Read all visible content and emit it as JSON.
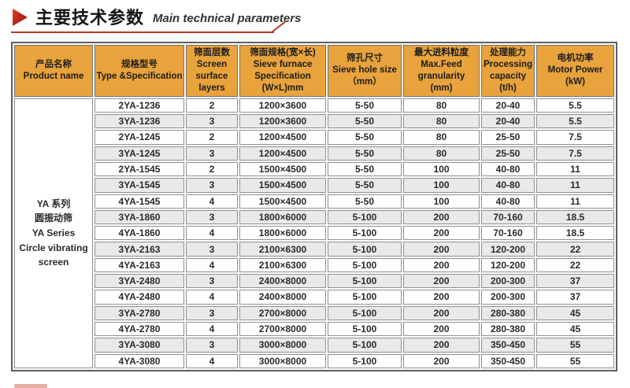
{
  "header": {
    "title_zh": "主要技术参数",
    "title_en": "Main technical parameters"
  },
  "table": {
    "column_headers": [
      "产品名称\nProduct name",
      "规格型号\nType &Specification",
      "筛面层数\nScreen\nsurface\nlayers",
      "筛面规格(宽×长)\nSieve furnace\nSpecification\n(W×L)mm",
      "筛孔尺寸\nSieve hole size\n（mm）",
      "最大进料粒度\nMax.Feed\ngranularity\n(mm)",
      "处理能力\nProcessing\ncapacity\n(t/h)",
      "电机功率\nMotor Power\n(kW)"
    ],
    "product_cell": "YA 系列\n圆振动筛\nYA Series\nCircle vibrating\nscreen",
    "rows": [
      [
        "2YA-1236",
        "2",
        "1200×3600",
        "5-50",
        "80",
        "20-40",
        "5.5"
      ],
      [
        "3YA-1236",
        "3",
        "1200×3600",
        "5-50",
        "80",
        "20-40",
        "5.5"
      ],
      [
        "2YA-1245",
        "2",
        "1200×4500",
        "5-50",
        "80",
        "25-50",
        "7.5"
      ],
      [
        "3YA-1245",
        "3",
        "1200×4500",
        "5-50",
        "80",
        "25-50",
        "7.5"
      ],
      [
        "2YA-1545",
        "2",
        "1500×4500",
        "5-50",
        "100",
        "40-80",
        "11"
      ],
      [
        "3YA-1545",
        "3",
        "1500×4500",
        "5-50",
        "100",
        "40-80",
        "11"
      ],
      [
        "4YA-1545",
        "4",
        "1500×4500",
        "5-50",
        "100",
        "40-80",
        "11"
      ],
      [
        "3YA-1860",
        "3",
        "1800×6000",
        "5-100",
        "200",
        "70-160",
        "18.5"
      ],
      [
        "4YA-1860",
        "4",
        "1800×6000",
        "5-100",
        "200",
        "70-160",
        "18.5"
      ],
      [
        "3YA-2163",
        "3",
        "2100×6300",
        "5-100",
        "200",
        "120-200",
        "22"
      ],
      [
        "4YA-2163",
        "4",
        "2100×6300",
        "5-100",
        "200",
        "120-200",
        "22"
      ],
      [
        "3YA-2480",
        "3",
        "2400×8000",
        "5-100",
        "200",
        "200-300",
        "37"
      ],
      [
        "4YA-2480",
        "4",
        "2400×8000",
        "5-100",
        "200",
        "200-300",
        "37"
      ],
      [
        "3YA-2780",
        "3",
        "2700×8000",
        "5-100",
        "200",
        "280-380",
        "45"
      ],
      [
        "4YA-2780",
        "4",
        "2700×8000",
        "5-100",
        "200",
        "280-380",
        "45"
      ],
      [
        "3YA-3080",
        "3",
        "3000×8000",
        "5-100",
        "200",
        "350-450",
        "55"
      ],
      [
        "4YA-3080",
        "4",
        "3000×8000",
        "5-100",
        "200",
        "350-450",
        "55"
      ]
    ]
  },
  "colors": {
    "header_bg": "#E8A33C",
    "row_alt_bg": "#E9E9E9",
    "accent_red": "#C1272D",
    "rule_red": "#B2392C",
    "border_gray": "#8F8F8F",
    "text_dark": "#2A2A2A"
  }
}
